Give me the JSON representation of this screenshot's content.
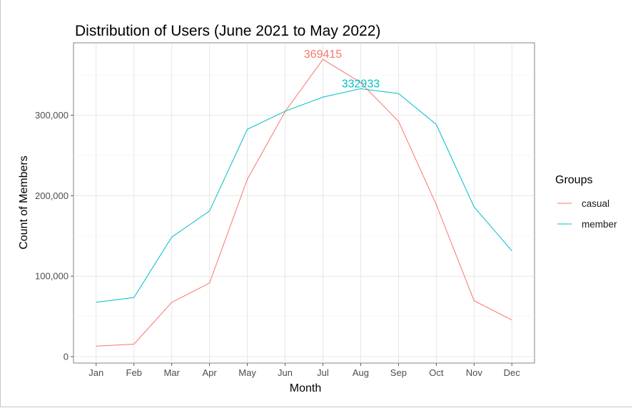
{
  "chart_data": {
    "type": "line",
    "title": "Distribution of Users (June 2021 to May 2022)",
    "xlabel": "Month",
    "ylabel": "Count of Members",
    "categories": [
      "Jan",
      "Feb",
      "Mar",
      "Apr",
      "May",
      "Jun",
      "Jul",
      "Aug",
      "Sep",
      "Oct",
      "Nov",
      "Dec"
    ],
    "ylim": [
      -8000,
      390000
    ],
    "yticks": [
      0,
      100000,
      200000,
      300000
    ],
    "ytick_labels": [
      "0",
      "100,000",
      "200,000",
      "300,000"
    ],
    "grid": true,
    "legend": {
      "title": "Groups",
      "position": "right"
    },
    "series": [
      {
        "name": "casual",
        "color": "#F8766D",
        "values": [
          13000,
          15500,
          67500,
          91500,
          220500,
          304500,
          369415,
          340500,
          292500,
          189000,
          69500,
          45500
        ]
      },
      {
        "name": "member",
        "color": "#00BFC4",
        "values": [
          67500,
          73500,
          148500,
          181000,
          282500,
          305000,
          322500,
          332933,
          327000,
          288500,
          186000,
          131500
        ]
      }
    ],
    "annotations": [
      {
        "series": "casual",
        "category": "Jul",
        "text": "369415"
      },
      {
        "series": "member",
        "category": "Aug",
        "text": "332933"
      }
    ]
  }
}
